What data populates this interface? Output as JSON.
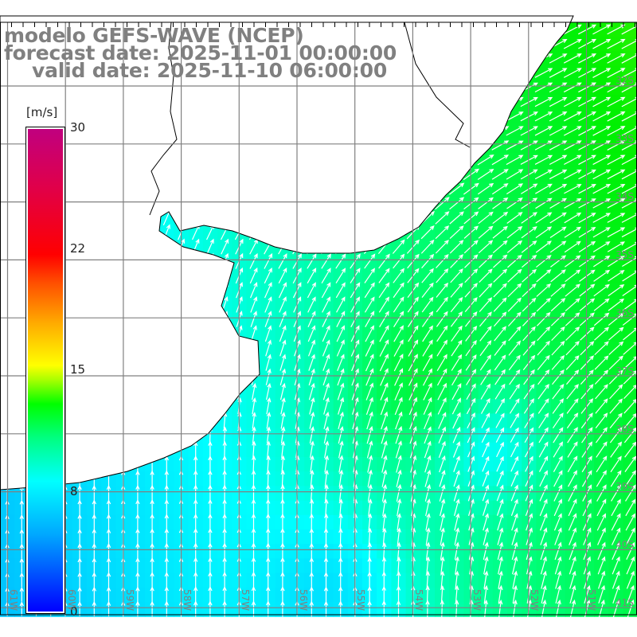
{
  "title": {
    "model": "modelo GEFS-WAVE (NCEP)",
    "forecast": "forecast date: 2025-11-01 00:00:00",
    "valid": "valid date: 2025-11-10 06:00:00"
  },
  "colorbar": {
    "unit": "[m/s]",
    "ticks": [
      "30",
      "22",
      "15",
      "8",
      "0"
    ],
    "min": 0,
    "max": 30
  },
  "lat_labels": [
    "32S",
    "33S",
    "34S",
    "35S",
    "36S",
    "37S",
    "38S",
    "39S",
    "40S",
    "41S"
  ],
  "lon_labels": [
    "61W",
    "60W",
    "59W",
    "58W",
    "57W",
    "56W",
    "55W",
    "54W",
    "53W",
    "52W",
    "51W"
  ],
  "colors": {
    "title": "#808080",
    "land": "#ffffff",
    "grid": "#808080",
    "arrow": "#ffffff"
  }
}
